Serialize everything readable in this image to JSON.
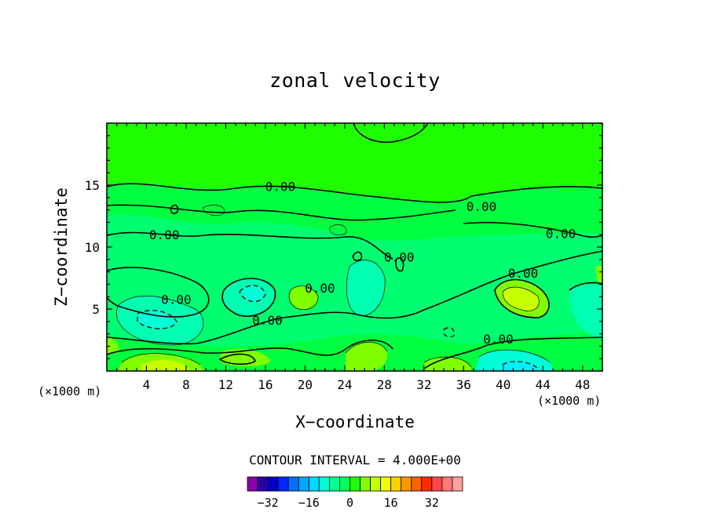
{
  "chart_data": {
    "type": "contour",
    "title": "zonal velocity",
    "xlabel": "X−coordinate",
    "ylabel": "Z−coordinate",
    "x_unit": "(×1000 m)",
    "y_unit": "(×1000 m)",
    "xlim": [
      0,
      50
    ],
    "ylim": [
      0,
      20
    ],
    "x_ticks": [
      "4",
      "8",
      "12",
      "16",
      "20",
      "24",
      "28",
      "32",
      "36",
      "40",
      "44",
      "48"
    ],
    "y_ticks": [
      "5",
      "10",
      "15"
    ],
    "contour_interval_label": "CONTOUR INTERVAL = 4.000E+00",
    "contour_labels": [
      "0.00"
    ],
    "colorbar": {
      "ticks": [
        "−32",
        "−16",
        "0",
        "16",
        "32"
      ],
      "colors": [
        "#8800aa",
        "#2800a8",
        "#0000c8",
        "#0028ff",
        "#0070ff",
        "#00a8ff",
        "#00d8ff",
        "#00ffd0",
        "#00ff90",
        "#00ff58",
        "#20ff00",
        "#80ff00",
        "#c8ff00",
        "#f0ff00",
        "#ffd000",
        "#ff9800",
        "#ff6000",
        "#ff2800",
        "#ff4848",
        "#ff7878",
        "#ffa0a0"
      ]
    }
  }
}
